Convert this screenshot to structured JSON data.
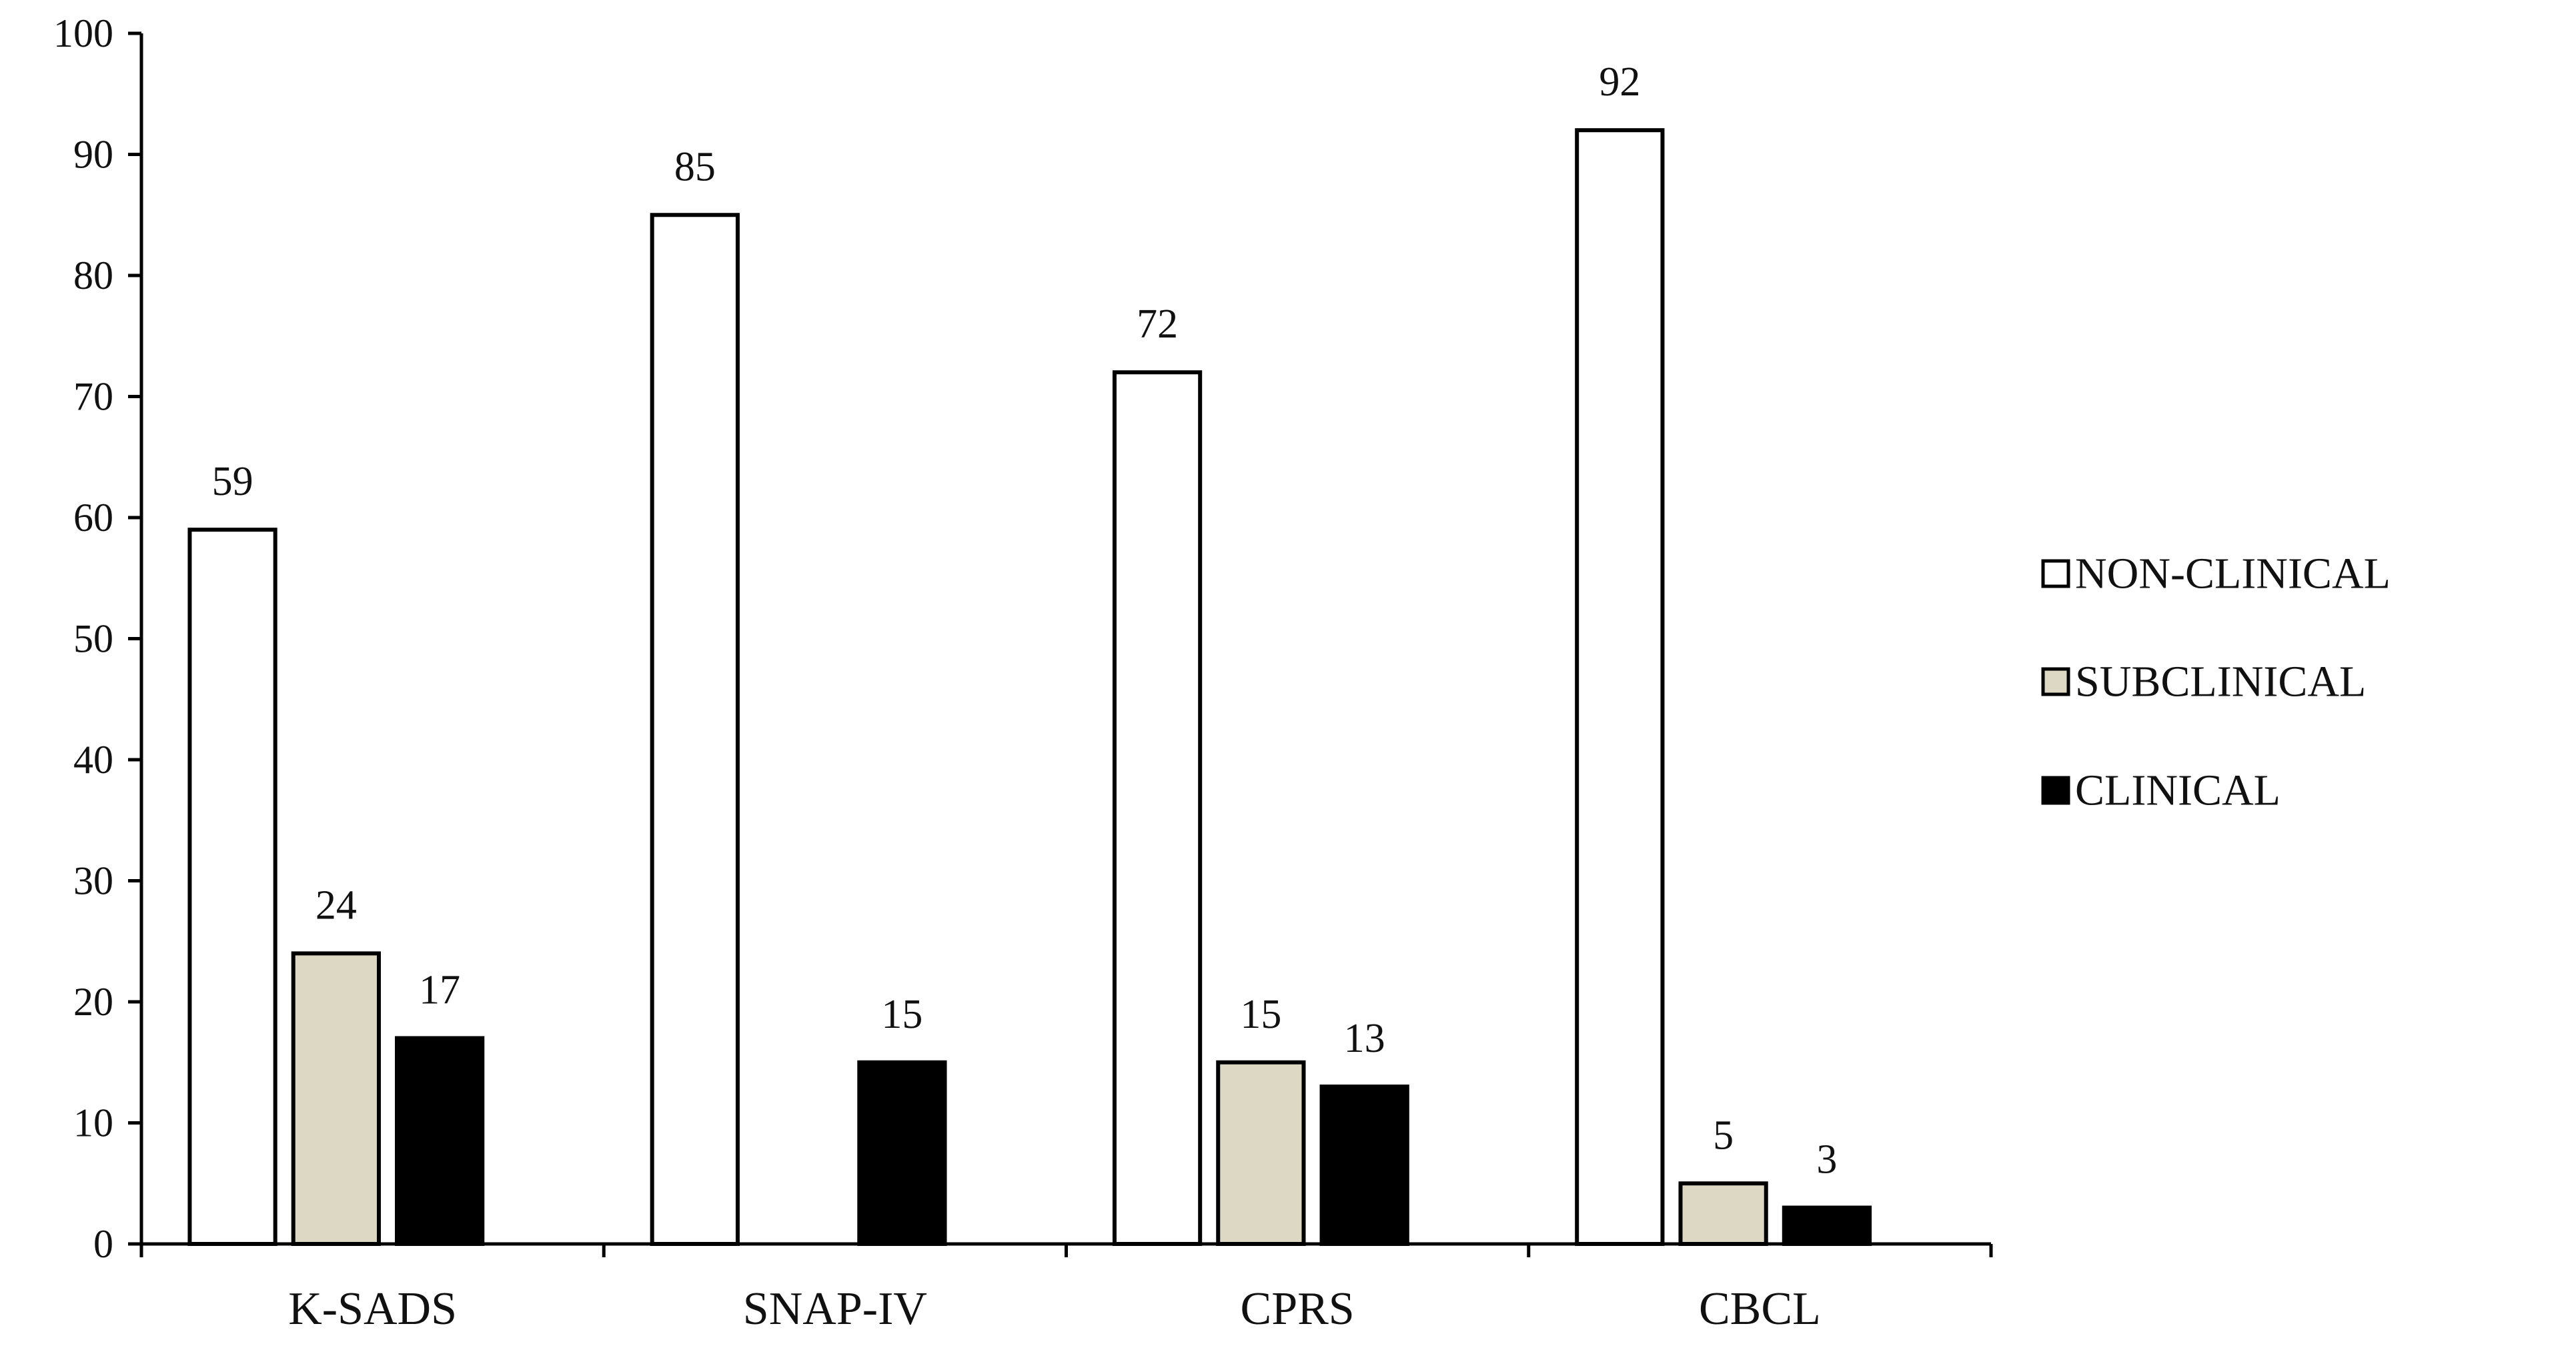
{
  "chart_data": {
    "type": "bar",
    "title": "",
    "xlabel": "",
    "ylabel": "",
    "ylim": [
      0,
      100
    ],
    "yticks": [
      "0",
      "10",
      "20",
      "30",
      "40",
      "50",
      "60",
      "70",
      "80",
      "90",
      "100"
    ],
    "categories": [
      "K-SADS",
      "SNAP-IV",
      "CPRS",
      "CBCL"
    ],
    "series": [
      {
        "name": "NON-CLINICAL",
        "color": "#ffffff",
        "values": [
          59,
          85,
          72,
          92
        ]
      },
      {
        "name": "SUBCLINICAL",
        "color": "#ddd8c4",
        "values": [
          24,
          null,
          15,
          5
        ]
      },
      {
        "name": "CLINICAL",
        "color": "#000000",
        "values": [
          17,
          15,
          13,
          3
        ]
      }
    ],
    "legend_position": "right",
    "grid": false
  }
}
